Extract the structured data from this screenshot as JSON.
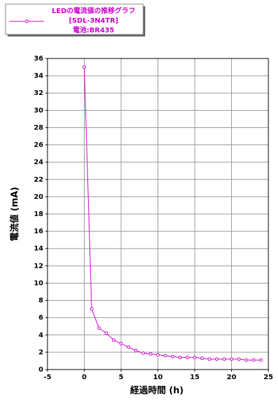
{
  "chart_data": {
    "type": "line",
    "title_lines": [
      "LEDの電流値の推移グラフ",
      "[SDL-3N4TR]",
      "電池:BR435"
    ],
    "x_label": "経過時間 (h)",
    "y_label": "電流値 (mA)",
    "series": [
      {
        "name": "LEDの電流値の推移グラフ",
        "color": "#d000d0",
        "x": [
          0,
          1,
          2,
          3,
          4,
          5,
          6,
          7,
          8,
          9,
          10,
          11,
          12,
          13,
          14,
          15,
          16,
          17,
          18,
          19,
          20,
          21,
          22,
          23,
          24
        ],
        "values": [
          35,
          7,
          4.8,
          4.2,
          3.4,
          3.0,
          2.6,
          2.2,
          1.9,
          1.8,
          1.7,
          1.6,
          1.5,
          1.4,
          1.4,
          1.4,
          1.3,
          1.2,
          1.2,
          1.2,
          1.2,
          1.2,
          1.1,
          1.1,
          1.1
        ]
      }
    ],
    "xlim": [
      -5,
      25
    ],
    "xticks": [
      -5,
      0,
      5,
      10,
      15,
      20,
      25
    ],
    "ylim": [
      0,
      36
    ],
    "yticks": [
      0,
      2,
      4,
      6,
      8,
      10,
      12,
      14,
      16,
      18,
      20,
      22,
      24,
      26,
      28,
      30,
      32,
      34,
      36
    ],
    "grid": true
  }
}
